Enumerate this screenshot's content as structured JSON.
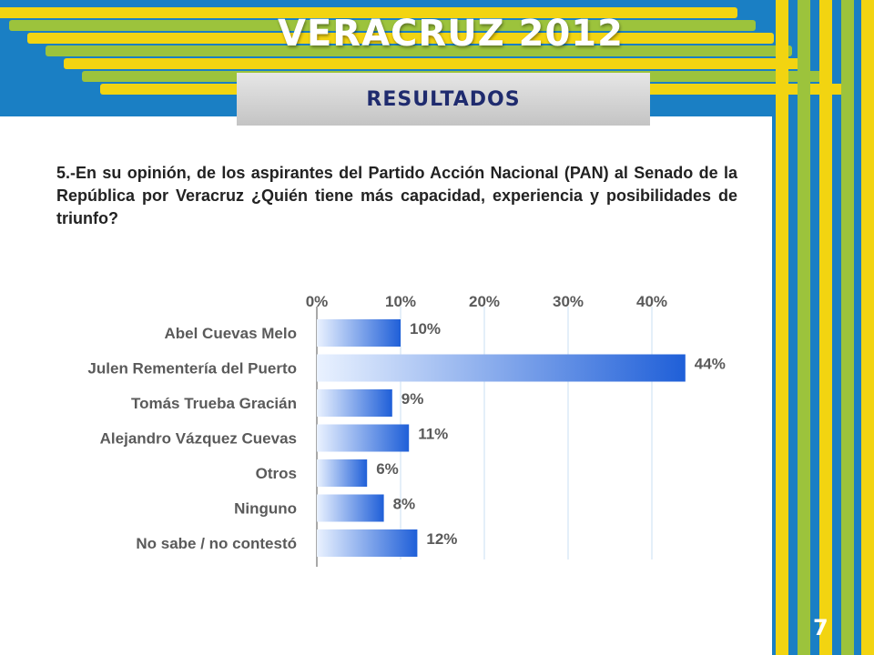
{
  "header": {
    "title": "VERACRUZ 2012",
    "subtitle": "RESULTADOS"
  },
  "question": "5.-En su opinión, de los aspirantes del Partido Acción Nacional (PAN) al Senado de la República por Veracruz ¿Quién tiene más capacidad, experiencia y posibilidades de triunfo?",
  "page_number": "7",
  "colors": {
    "background_blue": "#1a7fc4",
    "stripe_yellow": "#f2d411",
    "stripe_green": "#9cc33c",
    "bar_dark": "#1f5fd8",
    "bar_light": "#eaf2ff",
    "text_gray": "#5a5a5a"
  },
  "chart_data": {
    "type": "bar",
    "orientation": "horizontal",
    "categories": [
      "Abel Cuevas Melo",
      "Julen Rementería del Puerto",
      "Tomás Trueba Gracián",
      "Alejandro Vázquez Cuevas",
      "Otros",
      "Ninguno",
      "No sabe / no contestó"
    ],
    "values": [
      10,
      44,
      9,
      11,
      6,
      8,
      12
    ],
    "value_labels": [
      "10%",
      "44%",
      "9%",
      "11%",
      "6%",
      "8%",
      "12%"
    ],
    "x_ticks": [
      "0%",
      "10%",
      "20%",
      "30%",
      "40%"
    ],
    "xlim": [
      0,
      50
    ],
    "grid": true,
    "title": "",
    "xlabel": "",
    "ylabel": ""
  }
}
